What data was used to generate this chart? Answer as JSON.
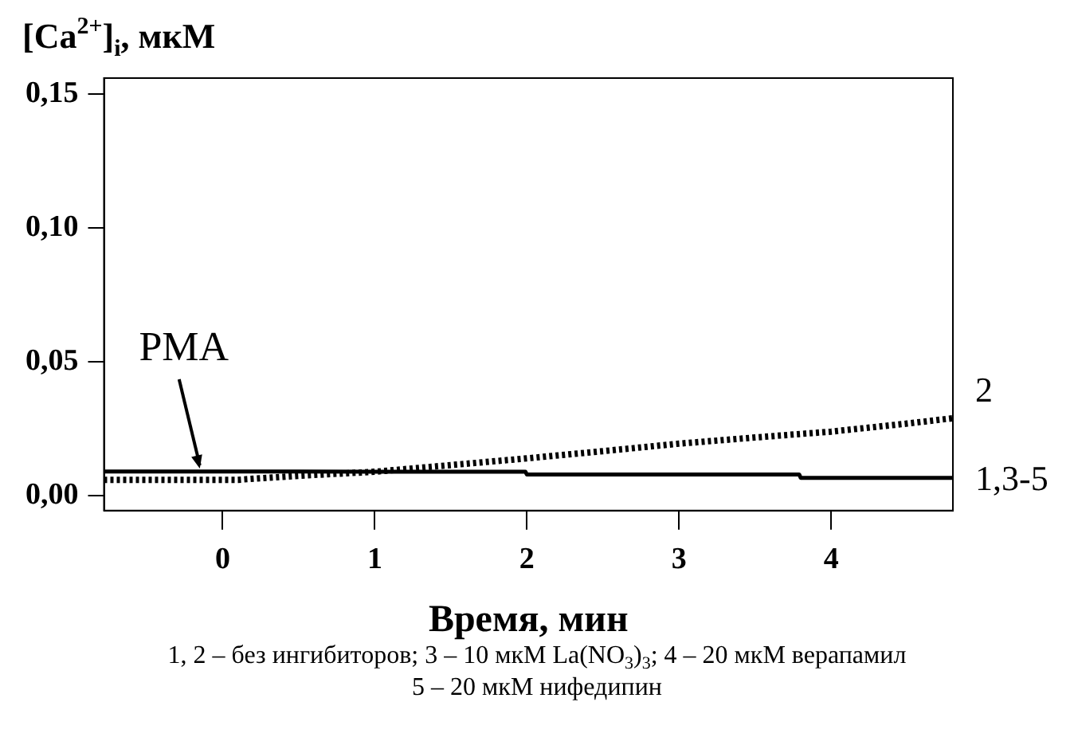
{
  "chart_data": {
    "type": "line",
    "ylabel": "[Ca$^{2+}$]$_{i}$, мкМ",
    "xlabel": "Время, мин",
    "xlim": [
      -0.78,
      4.8
    ],
    "xticks": [
      0,
      1,
      2,
      3,
      4
    ],
    "ylim": [
      -0.0055,
      0.156
    ],
    "yticks": [
      {
        "value": 0,
        "label": "0,00"
      },
      {
        "value": 0.05,
        "label": "0,05"
      },
      {
        "value": 0.1,
        "label": "0,10"
      },
      {
        "value": 0.15,
        "label": "0,15"
      }
    ],
    "grid": false,
    "legend": false,
    "marker": "none",
    "series": [
      {
        "name": "1,3-5",
        "color": "#000000",
        "line_style": "solid",
        "x": [
          -0.78,
          0.5,
          1.0,
          1.99,
          2.0,
          3.79,
          3.8,
          4.8
        ],
        "values": [
          0.0091,
          0.0091,
          0.009,
          0.009,
          0.008,
          0.008,
          0.0067,
          0.0067
        ]
      },
      {
        "name": "2",
        "color": "#000000",
        "line_style": "dotted",
        "x": [
          -0.78,
          0.1,
          0.5,
          1.0,
          1.5,
          2.0,
          2.5,
          3.0,
          3.5,
          4.0,
          4.5,
          4.8
        ],
        "values": [
          0.006,
          0.006,
          0.0075,
          0.009,
          0.0115,
          0.014,
          0.0167,
          0.0195,
          0.0218,
          0.024,
          0.027,
          0.029
        ]
      }
    ],
    "annotations": [
      {
        "text": "PMA",
        "x": -0.15,
        "y": 0.009
      },
      "1, 2 – без ингибиторов; 3 – 10 мкМ La(NO$_{3}$)$_{3}$; 4 – 20 мкМ верапамил",
      "5 – 20 мкМ нифедипин"
    ]
  }
}
